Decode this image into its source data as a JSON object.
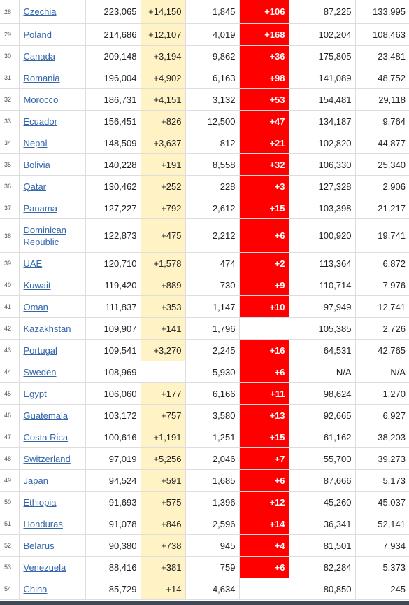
{
  "rows": [
    {
      "rank": "28",
      "country": "Czechia",
      "total_cases": "223,065",
      "new_cases": "+14,150",
      "total_deaths": "1,845",
      "new_deaths": "+106",
      "recovered": "87,225",
      "active": "133,995"
    },
    {
      "rank": "29",
      "country": "Poland",
      "total_cases": "214,686",
      "new_cases": "+12,107",
      "total_deaths": "4,019",
      "new_deaths": "+168",
      "recovered": "102,204",
      "active": "108,463"
    },
    {
      "rank": "30",
      "country": "Canada",
      "total_cases": "209,148",
      "new_cases": "+3,194",
      "total_deaths": "9,862",
      "new_deaths": "+36",
      "recovered": "175,805",
      "active": "23,481"
    },
    {
      "rank": "31",
      "country": "Romania",
      "total_cases": "196,004",
      "new_cases": "+4,902",
      "total_deaths": "6,163",
      "new_deaths": "+98",
      "recovered": "141,089",
      "active": "48,752"
    },
    {
      "rank": "32",
      "country": "Morocco",
      "total_cases": "186,731",
      "new_cases": "+4,151",
      "total_deaths": "3,132",
      "new_deaths": "+53",
      "recovered": "154,481",
      "active": "29,118"
    },
    {
      "rank": "33",
      "country": "Ecuador",
      "total_cases": "156,451",
      "new_cases": "+826",
      "total_deaths": "12,500",
      "new_deaths": "+47",
      "recovered": "134,187",
      "active": "9,764"
    },
    {
      "rank": "34",
      "country": "Nepal",
      "total_cases": "148,509",
      "new_cases": "+3,637",
      "total_deaths": "812",
      "new_deaths": "+21",
      "recovered": "102,820",
      "active": "44,877"
    },
    {
      "rank": "35",
      "country": "Bolivia",
      "total_cases": "140,228",
      "new_cases": "+191",
      "total_deaths": "8,558",
      "new_deaths": "+32",
      "recovered": "106,330",
      "active": "25,340"
    },
    {
      "rank": "36",
      "country": "Qatar",
      "total_cases": "130,462",
      "new_cases": "+252",
      "total_deaths": "228",
      "new_deaths": "+3",
      "recovered": "127,328",
      "active": "2,906"
    },
    {
      "rank": "37",
      "country": "Panama",
      "total_cases": "127,227",
      "new_cases": "+792",
      "total_deaths": "2,612",
      "new_deaths": "+15",
      "recovered": "103,398",
      "active": "21,217"
    },
    {
      "rank": "38",
      "country": "Dominican Republic",
      "total_cases": "122,873",
      "new_cases": "+475",
      "total_deaths": "2,212",
      "new_deaths": "+6",
      "recovered": "100,920",
      "active": "19,741"
    },
    {
      "rank": "39",
      "country": "UAE",
      "total_cases": "120,710",
      "new_cases": "+1,578",
      "total_deaths": "474",
      "new_deaths": "+2",
      "recovered": "113,364",
      "active": "6,872"
    },
    {
      "rank": "40",
      "country": "Kuwait",
      "total_cases": "119,420",
      "new_cases": "+889",
      "total_deaths": "730",
      "new_deaths": "+9",
      "recovered": "110,714",
      "active": "7,976"
    },
    {
      "rank": "41",
      "country": "Oman",
      "total_cases": "111,837",
      "new_cases": "+353",
      "total_deaths": "1,147",
      "new_deaths": "+10",
      "recovered": "97,949",
      "active": "12,741"
    },
    {
      "rank": "42",
      "country": "Kazakhstan",
      "total_cases": "109,907",
      "new_cases": "+141",
      "total_deaths": "1,796",
      "new_deaths": "",
      "recovered": "105,385",
      "active": "2,726"
    },
    {
      "rank": "43",
      "country": "Portugal",
      "total_cases": "109,541",
      "new_cases": "+3,270",
      "total_deaths": "2,245",
      "new_deaths": "+16",
      "recovered": "64,531",
      "active": "42,765"
    },
    {
      "rank": "44",
      "country": "Sweden",
      "total_cases": "108,969",
      "new_cases": "",
      "total_deaths": "5,930",
      "new_deaths": "+6",
      "recovered": "N/A",
      "active": "N/A"
    },
    {
      "rank": "45",
      "country": "Egypt",
      "total_cases": "106,060",
      "new_cases": "+177",
      "total_deaths": "6,166",
      "new_deaths": "+11",
      "recovered": "98,624",
      "active": "1,270"
    },
    {
      "rank": "46",
      "country": "Guatemala",
      "total_cases": "103,172",
      "new_cases": "+757",
      "total_deaths": "3,580",
      "new_deaths": "+13",
      "recovered": "92,665",
      "active": "6,927"
    },
    {
      "rank": "47",
      "country": "Costa Rica",
      "total_cases": "100,616",
      "new_cases": "+1,191",
      "total_deaths": "1,251",
      "new_deaths": "+15",
      "recovered": "61,162",
      "active": "38,203"
    },
    {
      "rank": "48",
      "country": "Switzerland",
      "total_cases": "97,019",
      "new_cases": "+5,256",
      "total_deaths": "2,046",
      "new_deaths": "+7",
      "recovered": "55,700",
      "active": "39,273"
    },
    {
      "rank": "49",
      "country": "Japan",
      "total_cases": "94,524",
      "new_cases": "+591",
      "total_deaths": "1,685",
      "new_deaths": "+6",
      "recovered": "87,666",
      "active": "5,173"
    },
    {
      "rank": "50",
      "country": "Ethiopia",
      "total_cases": "91,693",
      "new_cases": "+575",
      "total_deaths": "1,396",
      "new_deaths": "+12",
      "recovered": "45,260",
      "active": "45,037"
    },
    {
      "rank": "51",
      "country": "Honduras",
      "total_cases": "91,078",
      "new_cases": "+846",
      "total_deaths": "2,596",
      "new_deaths": "+14",
      "recovered": "36,341",
      "active": "52,141"
    },
    {
      "rank": "52",
      "country": "Belarus",
      "total_cases": "90,380",
      "new_cases": "+738",
      "total_deaths": "945",
      "new_deaths": "+4",
      "recovered": "81,501",
      "active": "7,934"
    },
    {
      "rank": "53",
      "country": "Venezuela",
      "total_cases": "88,416",
      "new_cases": "+381",
      "total_deaths": "759",
      "new_deaths": "+6",
      "recovered": "82,284",
      "active": "5,373"
    },
    {
      "rank": "54",
      "country": "China",
      "total_cases": "85,729",
      "new_cases": "+14",
      "total_deaths": "4,634",
      "new_deaths": "",
      "recovered": "80,850",
      "active": "245"
    }
  ],
  "colors": {
    "link": "#3366aa",
    "new_cases_bg": "#fff3c6",
    "new_deaths_bg": "#ff0000",
    "border": "#dddddd"
  }
}
